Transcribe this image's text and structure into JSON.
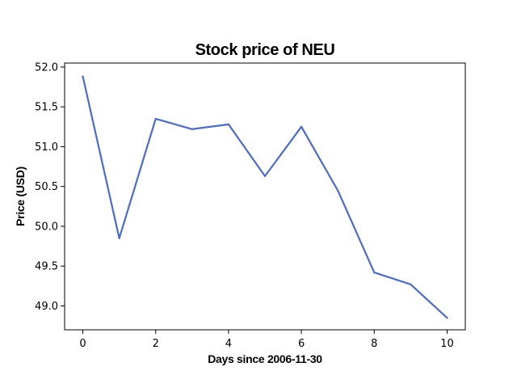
{
  "chart_data": {
    "type": "line",
    "title": "Stock price of NEU",
    "xlabel": "Days since 2006-11-30",
    "ylabel": "Price (USD)",
    "x": [
      0,
      1,
      2,
      3,
      4,
      5,
      6,
      7,
      8,
      9,
      10
    ],
    "series": [
      {
        "values": [
          51.88,
          49.85,
          51.35,
          51.22,
          51.28,
          50.63,
          51.25,
          50.45,
          49.42,
          49.27,
          48.85
        ]
      }
    ],
    "xticks": [
      0,
      2,
      4,
      6,
      8,
      10
    ],
    "xtick_labels": [
      "0",
      "2",
      "4",
      "6",
      "8",
      "10"
    ],
    "yticks": [
      49.0,
      49.5,
      50.0,
      50.5,
      51.0,
      51.5,
      52.0
    ],
    "ytick_labels": [
      "49.0",
      "49.5",
      "50.0",
      "50.5",
      "51.0",
      "51.5",
      "52.0"
    ],
    "xlim": [
      -0.5,
      10.5
    ],
    "ylim": [
      48.7,
      52.05
    ],
    "grid": false,
    "line_color": "#4a6bcf"
  }
}
